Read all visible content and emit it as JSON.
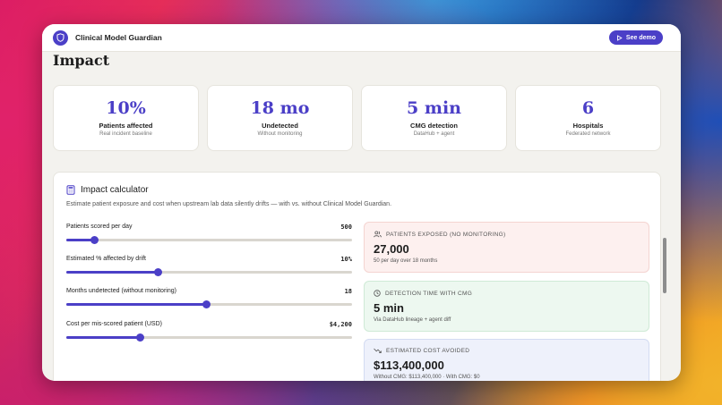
{
  "app": {
    "title": "Clinical Model Guardian",
    "demo_label": "See demo"
  },
  "page": {
    "title": "Impact"
  },
  "stats": [
    {
      "value": "10%",
      "label": "Patients affected",
      "sub": "Real incident baseline"
    },
    {
      "value": "18 mo",
      "label": "Undetected",
      "sub": "Without monitoring"
    },
    {
      "value": "5 min",
      "label": "CMG detection",
      "sub": "DataHub + agent"
    },
    {
      "value": "6",
      "label": "Hospitals",
      "sub": "Federated network"
    }
  ],
  "calculator": {
    "title": "Impact calculator",
    "description": "Estimate patient exposure and cost when upstream lab data silently drifts — with vs. without Clinical Model Guardian.",
    "sliders": [
      {
        "label": "Patients scored per day",
        "value": "500",
        "fraction": 0.1
      },
      {
        "label": "Estimated % affected by drift",
        "value": "10%",
        "fraction": 0.32
      },
      {
        "label": "Months undetected (without monitoring)",
        "value": "18",
        "fraction": 0.49
      },
      {
        "label": "Cost per mis-scored patient (USD)",
        "value": "$4,200",
        "fraction": 0.26
      }
    ],
    "cards": [
      {
        "head": "Patients exposed (no monitoring)",
        "value": "27,000",
        "sub": "50 per day over 18 months",
        "bg": "#fdf0ef",
        "border": "#f4d4d1"
      },
      {
        "head": "Detection time with CMG",
        "value": "5 min",
        "sub": "Via DataHub lineage + agent diff",
        "bg": "#edf8f0",
        "border": "#cfead6"
      },
      {
        "head": "Estimated cost avoided",
        "value": "$113,400,000",
        "sub": "Without CMG: $113,400,000 · With CMG: $0",
        "bg": "#eef1fb",
        "border": "#d3dbf2"
      }
    ]
  },
  "colors": {
    "accent": "#4b3fc7"
  }
}
